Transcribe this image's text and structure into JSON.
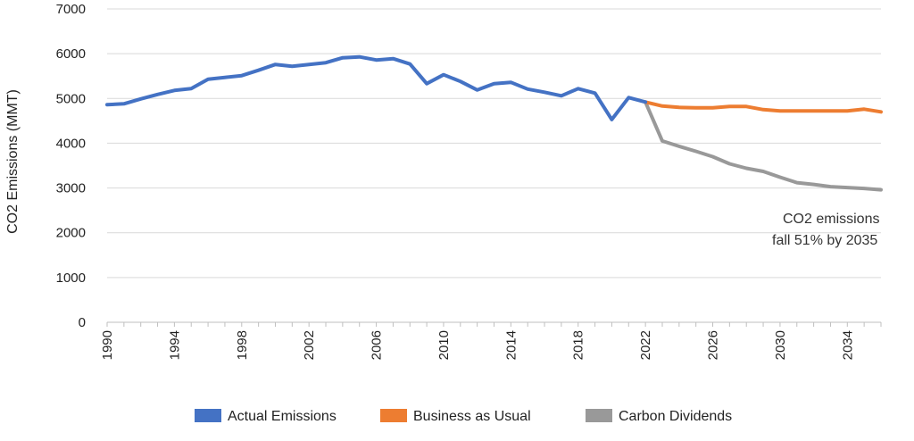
{
  "chart_data": {
    "type": "line",
    "title": "",
    "xlabel": "",
    "ylabel": "CO2 Emissions (MMT)",
    "ylim": [
      0,
      7000
    ],
    "xlim": [
      1990,
      2036
    ],
    "y_ticks": [
      "0",
      "1000",
      "2000",
      "3000",
      "4000",
      "5000",
      "6000",
      "7000"
    ],
    "x_ticks": [
      "1990",
      "1994",
      "1998",
      "2002",
      "2006",
      "2010",
      "2014",
      "2018",
      "2022",
      "2026",
      "2030",
      "2034"
    ],
    "grid": "horizontal",
    "legend_position": "bottom",
    "annotation": [
      "CO2 emissions",
      "fall 51% by 2035"
    ],
    "series": [
      {
        "name": "Actual Emissions",
        "color": "#4472C4",
        "x": [
          1990,
          1991,
          1992,
          1993,
          1994,
          1995,
          1996,
          1997,
          1998,
          1999,
          2000,
          2001,
          2002,
          2003,
          2004,
          2005,
          2006,
          2007,
          2008,
          2009,
          2010,
          2011,
          2012,
          2013,
          2014,
          2015,
          2016,
          2017,
          2018,
          2019,
          2020,
          2021,
          2022
        ],
        "values": [
          4860,
          4880,
          4990,
          5090,
          5180,
          5220,
          5430,
          5470,
          5510,
          5630,
          5760,
          5720,
          5760,
          5800,
          5910,
          5930,
          5860,
          5890,
          5770,
          5330,
          5530,
          5380,
          5190,
          5330,
          5360,
          5210,
          5140,
          5060,
          5220,
          5120,
          4530,
          5020,
          4920
        ]
      },
      {
        "name": "Business as Usual",
        "color": "#ED7D31",
        "x": [
          2022,
          2023,
          2024,
          2025,
          2026,
          2027,
          2028,
          2029,
          2030,
          2031,
          2032,
          2033,
          2034,
          2035,
          2036
        ],
        "values": [
          4920,
          4830,
          4800,
          4790,
          4790,
          4820,
          4820,
          4750,
          4720,
          4720,
          4720,
          4720,
          4720,
          4760,
          4700
        ]
      },
      {
        "name": "Carbon Dividends",
        "color": "#999999",
        "x": [
          2022,
          2023,
          2024,
          2025,
          2026,
          2027,
          2028,
          2029,
          2030,
          2031,
          2032,
          2033,
          2034,
          2035,
          2036
        ],
        "values": [
          4920,
          4050,
          3930,
          3820,
          3700,
          3540,
          3440,
          3370,
          3240,
          3120,
          3080,
          3030,
          3010,
          2990,
          2960
        ]
      }
    ]
  }
}
